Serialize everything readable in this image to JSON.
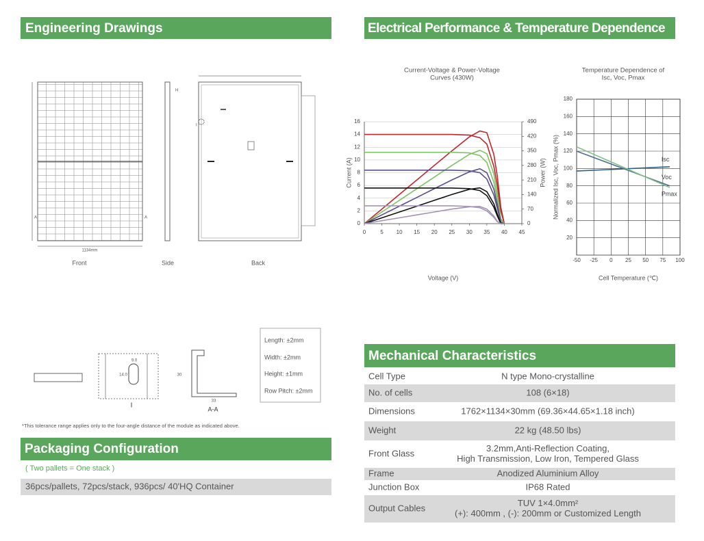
{
  "sections": {
    "engineering": "Engineering Drawings",
    "electrical": "Electrical Performance & Temperature Dependence",
    "packaging": "Packaging Configuration",
    "mechanical": "Mechanical Characteristics"
  },
  "drawings": {
    "views": [
      "Front",
      "Side",
      "Back"
    ],
    "width_dim": "1134mm",
    "side_mark": "H",
    "section_mark": "A",
    "detail_mark": "I",
    "detail_label": "I",
    "section_label": "A-A",
    "profile_height": "30",
    "profile_width": "33",
    "hole_width": "9.0",
    "hole_height": "14.0",
    "tolerances": [
      "Length: ±2mm",
      "Width: ±2mm",
      "Height: ±1mm",
      "Row Pitch: ±2mm"
    ],
    "note": "*This tolerance range applies only to the four-angle distance of the module as indicated above."
  },
  "packaging": {
    "note": "( Two pallets = One stack )",
    "detail": "36pcs/pallets, 72pcs/stack, 936pcs/ 40'HQ Container"
  },
  "mechanical": {
    "rows": [
      {
        "label": "Cell  Type",
        "value": [
          "N type Mono-crystalline"
        ]
      },
      {
        "label": "No. of cells",
        "value": [
          "108 (6×18)"
        ]
      },
      {
        "label": "Dimensions",
        "value": [
          "1762×1134×30mm (69.36×44.65×1.18 inch)"
        ]
      },
      {
        "label": "Weight",
        "value": [
          "22 kg (48.50 lbs)"
        ]
      },
      {
        "label": "Front Glass",
        "value": [
          "3.2mm,Anti-Reflection Coating,",
          "High Transmission, Low Iron, Tempered Glass"
        ]
      },
      {
        "label": "Frame",
        "value": [
          "Anodized Aluminium Alloy"
        ]
      },
      {
        "label": "Junction Box",
        "value": [
          "IP68 Rated"
        ]
      },
      {
        "label": "Output Cables",
        "value": [
          "TUV  1×4.0mm²",
          "(+): 400mm , (-): 200mm or Customized Length"
        ]
      }
    ]
  },
  "chart_data": [
    {
      "type": "line",
      "title": [
        "Current-Voltage & Power-Voltage",
        "Curves (430W)"
      ],
      "x_label": "Voltage (V)",
      "y_label": "Current (A)",
      "y2_label": "Power (W)",
      "x": [
        0,
        5,
        10,
        15,
        20,
        25,
        30,
        33,
        35,
        37,
        38,
        39,
        40
      ],
      "xlim": [
        0,
        45
      ],
      "xticks": [
        0,
        5,
        10,
        15,
        20,
        25,
        30,
        35,
        40,
        45
      ],
      "ylim": [
        0,
        16
      ],
      "yticks": [
        0,
        2,
        4,
        6,
        8,
        10,
        12,
        14,
        16
      ],
      "y2lim": [
        0,
        490
      ],
      "y2ticks": [
        0,
        70,
        140,
        210,
        280,
        350,
        420,
        490
      ],
      "grid": "horizontal",
      "series": [
        {
          "color": "#c0272d",
          "values": [
            14,
            14,
            14,
            14,
            14,
            14,
            13.9,
            13.5,
            12.5,
            9,
            6,
            2,
            0
          ]
        },
        {
          "color": "#c0272d",
          "axis": "y2",
          "values": [
            0,
            70,
            140,
            210,
            280,
            350,
            417,
            445.5,
            437.5,
            333,
            228,
            78,
            0
          ]
        },
        {
          "color": "#7dc462",
          "values": [
            11.2,
            11.2,
            11.2,
            11.2,
            11.2,
            11.2,
            11.1,
            10.7,
            9.6,
            6.5,
            3.8,
            0.6,
            0
          ]
        },
        {
          "color": "#7dc462",
          "axis": "y2",
          "values": [
            0,
            56,
            112,
            168,
            224,
            280,
            333,
            353,
            336,
            240,
            144,
            23,
            0
          ]
        },
        {
          "color": "#5a4d8c",
          "values": [
            8.4,
            8.4,
            8.4,
            8.4,
            8.4,
            8.4,
            8.3,
            8,
            7,
            4.5,
            2.4,
            0.2,
            0
          ]
        },
        {
          "color": "#5a4d8c",
          "axis": "y2",
          "values": [
            0,
            42,
            84,
            126,
            168,
            210,
            249,
            264,
            245,
            166,
            91,
            8,
            0
          ]
        },
        {
          "color": "#111111",
          "values": [
            5.6,
            5.6,
            5.6,
            5.6,
            5.6,
            5.6,
            5.5,
            5.2,
            4.4,
            2.6,
            1.2,
            0,
            0
          ]
        },
        {
          "color": "#111111",
          "axis": "y2",
          "values": [
            0,
            28,
            56,
            84,
            112,
            140,
            165,
            172,
            154,
            96,
            46,
            0,
            0
          ]
        },
        {
          "color": "#a394b8",
          "values": [
            2.8,
            2.8,
            2.8,
            2.8,
            2.8,
            2.8,
            2.7,
            2.5,
            2,
            1,
            0.3,
            0,
            0
          ]
        },
        {
          "color": "#a394b8",
          "axis": "y2",
          "values": [
            0,
            14,
            28,
            42,
            56,
            70,
            81,
            83,
            70,
            37,
            11,
            0,
            0
          ]
        }
      ]
    },
    {
      "type": "line",
      "title": [
        "Temperature Dependence of",
        "Isc, Voc, Pmax"
      ],
      "x_label": "Cell Temperature (℃)",
      "y_label": "Normalized Isc, Voc, Pmax (%)",
      "x": [
        -50,
        85
      ],
      "xlim": [
        -50,
        100
      ],
      "xticks": [
        -50,
        -25,
        0,
        25,
        50,
        75,
        100
      ],
      "ylim": [
        0,
        180
      ],
      "yticks": [
        20,
        40,
        60,
        80,
        100,
        120,
        140,
        160,
        180
      ],
      "grid": "both",
      "series": [
        {
          "name": "Isc",
          "color": "#2e5f86",
          "values": [
            97,
            102
          ]
        },
        {
          "name": "Voc",
          "color": "#4f6f8f",
          "values": [
            120,
            80
          ]
        },
        {
          "name": "Pmax",
          "color": "#7fbf8a",
          "values": [
            125,
            78
          ]
        }
      ]
    }
  ]
}
